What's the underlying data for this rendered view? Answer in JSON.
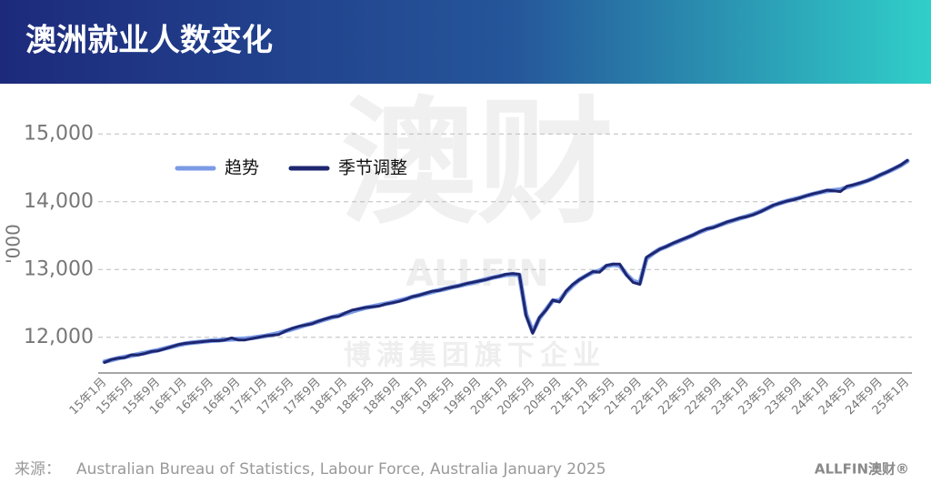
{
  "chart_data": {
    "type": "line",
    "title": "澳洲就业人数变化",
    "y_label": "'000",
    "categories": [
      "15年1月",
      null,
      null,
      null,
      "15年5月",
      null,
      null,
      null,
      "15年9月",
      null,
      null,
      null,
      "16年1月",
      null,
      null,
      null,
      "16年5月",
      null,
      null,
      null,
      "16年9月",
      null,
      null,
      null,
      "17年1月",
      null,
      null,
      null,
      "17年5月",
      null,
      null,
      null,
      "17年9月",
      null,
      null,
      null,
      "18年1月",
      null,
      null,
      null,
      "18年5月",
      null,
      null,
      null,
      "18年9月",
      null,
      null,
      null,
      "19年1月",
      null,
      null,
      null,
      "19年5月",
      null,
      null,
      null,
      "19年9月",
      null,
      null,
      null,
      "20年1月",
      null,
      null,
      null,
      "20年5月",
      null,
      null,
      null,
      "20年9月",
      null,
      null,
      null,
      "21年1月",
      null,
      null,
      null,
      "21年5月",
      null,
      null,
      null,
      "21年9月",
      null,
      null,
      null,
      "22年1月",
      null,
      null,
      null,
      "22年5月",
      null,
      null,
      null,
      "22年9月",
      null,
      null,
      null,
      "23年1月",
      null,
      null,
      null,
      "23年5月",
      null,
      null,
      null,
      "23年9月",
      null,
      null,
      null,
      "24年1月",
      null,
      null,
      null,
      "24年5月",
      null,
      null,
      null,
      "24年9月",
      null,
      null,
      null,
      "25年1月"
    ],
    "series": [
      {
        "name": "趋势",
        "color": "#7b9be6",
        "values": [
          11640,
          11665,
          11690,
          11710,
          11730,
          11750,
          11770,
          11790,
          11810,
          11835,
          11860,
          11885,
          11905,
          11920,
          11930,
          11940,
          11950,
          11955,
          11965,
          11970,
          11975,
          11980,
          11990,
          12005,
          12020,
          12040,
          12060,
          12090,
          12120,
          12150,
          12180,
          12205,
          12235,
          12265,
          12295,
          12320,
          12350,
          12380,
          12410,
          12435,
          12455,
          12475,
          12495,
          12515,
          12540,
          12565,
          12595,
          12620,
          12645,
          12670,
          12695,
          12715,
          12740,
          12760,
          12785,
          12805,
          12830,
          12855,
          12880,
          12900,
          12920,
          12930,
          12920,
          12340,
          12080,
          12280,
          12410,
          12540,
          12540,
          12670,
          12770,
          12850,
          12910,
          12960,
          12980,
          13050,
          13070,
          13060,
          12930,
          12830,
          12800,
          13160,
          13240,
          13300,
          13340,
          13385,
          13425,
          13465,
          13510,
          13555,
          13595,
          13625,
          13660,
          13695,
          13725,
          13755,
          13785,
          13815,
          13855,
          13900,
          13945,
          13980,
          14010,
          14035,
          14060,
          14090,
          14115,
          14140,
          14160,
          14170,
          14180,
          14215,
          14245,
          14275,
          14310,
          14350,
          14395,
          14440,
          14485,
          14535,
          14600
        ]
      },
      {
        "name": "季节调整",
        "color": "#1e2670",
        "values": [
          11630,
          11670,
          11690,
          11700,
          11740,
          11740,
          11760,
          11790,
          11800,
          11830,
          11860,
          11890,
          11910,
          11920,
          11930,
          11940,
          11950,
          11950,
          11960,
          11990,
          11960,
          11960,
          11980,
          12000,
          12020,
          12030,
          12040,
          12090,
          12130,
          12160,
          12180,
          12200,
          12240,
          12270,
          12300,
          12310,
          12360,
          12400,
          12420,
          12440,
          12450,
          12460,
          12490,
          12510,
          12530,
          12560,
          12600,
          12620,
          12650,
          12680,
          12690,
          12720,
          12740,
          12760,
          12790,
          12810,
          12830,
          12850,
          12880,
          12900,
          12930,
          12940,
          12930,
          12320,
          12060,
          12290,
          12400,
          12550,
          12520,
          12680,
          12780,
          12850,
          12910,
          12970,
          12960,
          13060,
          13080,
          13080,
          12920,
          12810,
          12780,
          13180,
          13240,
          13300,
          13340,
          13390,
          13430,
          13470,
          13510,
          13560,
          13600,
          13620,
          13660,
          13700,
          13730,
          13760,
          13780,
          13810,
          13850,
          13900,
          13950,
          13980,
          14010,
          14030,
          14060,
          14090,
          14120,
          14140,
          14170,
          14160,
          14150,
          14230,
          14250,
          14280,
          14310,
          14350,
          14400,
          14440,
          14490,
          14540,
          14610
        ]
      }
    ],
    "ylim": [
      11500,
      15500
    ],
    "yticks": [
      {
        "value": 12000,
        "label": "12,000"
      },
      {
        "value": 13000,
        "label": "13,000"
      },
      {
        "value": 14000,
        "label": "14,000"
      },
      {
        "value": 15000,
        "label": "15,000"
      }
    ],
    "grid": true,
    "legend": "upper left"
  },
  "watermark": {
    "main": "澳财",
    "brand": "ALLFIN",
    "sub": "博满集团旗下企业"
  },
  "footer": {
    "source_label": "来源：",
    "source": "Australian Bureau of Statistics, Labour Force, Australia January 2025",
    "logo": "ALLFIN澳财®"
  }
}
